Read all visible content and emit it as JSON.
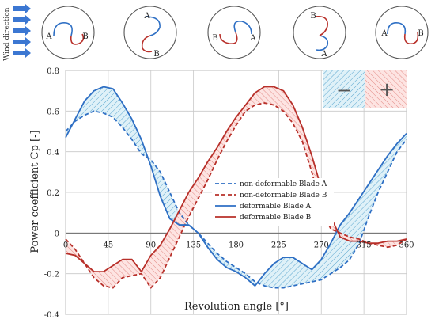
{
  "wind_direction_label": "Wind direction",
  "blade_diagrams": [
    {
      "labels": [
        "A",
        "B"
      ]
    },
    {
      "labels": [
        "A",
        "B"
      ]
    },
    {
      "labels": [
        "B",
        "A"
      ]
    },
    {
      "labels": [
        "B",
        "A"
      ]
    },
    {
      "labels": [
        "A",
        "B"
      ]
    }
  ],
  "sign_box": {
    "minus": "−",
    "plus": "+"
  },
  "colors": {
    "blade_a": "#2e6fc4",
    "blade_b": "#b8302a",
    "fill_a": "#9fd3e6",
    "fill_b": "#f2a7a4",
    "grid": "#c8c8c8"
  },
  "chart_data": {
    "type": "line",
    "title": "",
    "xlabel": "Revolution angle [°]",
    "ylabel": "Power coefficient Cp [-]",
    "xlim": [
      0,
      360
    ],
    "ylim": [
      -0.4,
      0.8
    ],
    "xticks": [
      0,
      45,
      90,
      135,
      180,
      225,
      270,
      315,
      360
    ],
    "xtick_labels": [
      "0",
      "45",
      "90",
      "135",
      "180",
      "225",
      "270",
      "315",
      "360"
    ],
    "yticks": [
      -0.4,
      -0.2,
      0,
      0.2,
      0.4,
      0.6,
      0.8
    ],
    "ytick_labels": [
      "-0.4",
      "-0.2",
      "0",
      "0.2",
      "0.4",
      "0.6",
      "0.8"
    ],
    "grid": true,
    "legend_position": "center-right",
    "series": [
      {
        "name": "non-deformable Blade A",
        "style": "dashed",
        "color": "#2e6fc4",
        "x": [
          0,
          10,
          20,
          30,
          40,
          50,
          60,
          70,
          80,
          90,
          100,
          110,
          120,
          130,
          140,
          150,
          160,
          170,
          180,
          190,
          200,
          210,
          220,
          230,
          240,
          250,
          260,
          270,
          280,
          290,
          300,
          310,
          320,
          330,
          340,
          350,
          360
        ],
        "y": [
          0.5,
          0.55,
          0.58,
          0.6,
          0.59,
          0.57,
          0.52,
          0.46,
          0.39,
          0.36,
          0.3,
          0.2,
          0.1,
          0.04,
          0.0,
          -0.05,
          -0.1,
          -0.14,
          -0.17,
          -0.2,
          -0.24,
          -0.26,
          -0.27,
          -0.27,
          -0.26,
          -0.25,
          -0.24,
          -0.23,
          -0.2,
          -0.17,
          -0.13,
          -0.05,
          0.08,
          0.2,
          0.3,
          0.4,
          0.46
        ]
      },
      {
        "name": "non-deformable Blade B",
        "style": "dashed",
        "color": "#b8302a",
        "x": [
          0,
          10,
          20,
          30,
          40,
          50,
          60,
          70,
          80,
          90,
          100,
          110,
          120,
          130,
          140,
          150,
          160,
          170,
          180,
          190,
          200,
          210,
          220,
          230,
          240,
          250,
          260,
          270,
          280,
          290,
          300,
          310,
          320,
          330,
          340,
          350,
          360
        ],
        "y": [
          -0.03,
          -0.08,
          -0.15,
          -0.22,
          -0.26,
          -0.27,
          -0.22,
          -0.21,
          -0.2,
          -0.27,
          -0.22,
          -0.12,
          -0.02,
          0.08,
          0.17,
          0.26,
          0.36,
          0.45,
          0.53,
          0.6,
          0.63,
          0.64,
          0.63,
          0.6,
          0.54,
          0.45,
          0.3,
          0.12,
          0.02,
          0.0,
          -0.02,
          -0.03,
          -0.05,
          -0.06,
          -0.07,
          -0.06,
          -0.03
        ]
      },
      {
        "name": "deformable Blade A",
        "style": "solid",
        "color": "#2e6fc4",
        "x": [
          0,
          10,
          20,
          30,
          40,
          50,
          60,
          70,
          80,
          90,
          100,
          110,
          120,
          130,
          140,
          150,
          160,
          170,
          180,
          190,
          200,
          210,
          220,
          230,
          240,
          250,
          260,
          270,
          280,
          290,
          300,
          310,
          320,
          330,
          340,
          350,
          360
        ],
        "y": [
          0.47,
          0.56,
          0.65,
          0.7,
          0.72,
          0.71,
          0.64,
          0.56,
          0.46,
          0.33,
          0.18,
          0.07,
          0.04,
          0.04,
          0.0,
          -0.07,
          -0.13,
          -0.17,
          -0.19,
          -0.22,
          -0.26,
          -0.2,
          -0.15,
          -0.12,
          -0.12,
          -0.15,
          -0.18,
          -0.13,
          -0.05,
          0.04,
          0.1,
          0.17,
          0.24,
          0.31,
          0.38,
          0.44,
          0.49
        ]
      },
      {
        "name": "deformable Blade B",
        "style": "solid",
        "color": "#b8302a",
        "x": [
          0,
          10,
          20,
          30,
          40,
          50,
          60,
          70,
          80,
          90,
          100,
          110,
          120,
          130,
          140,
          150,
          160,
          170,
          180,
          190,
          200,
          210,
          220,
          230,
          240,
          250,
          260,
          270,
          280,
          290,
          300,
          310,
          320,
          330,
          340,
          350,
          360
        ],
        "y": [
          -0.1,
          -0.11,
          -0.15,
          -0.19,
          -0.19,
          -0.16,
          -0.13,
          -0.13,
          -0.19,
          -0.11,
          -0.06,
          0.02,
          0.11,
          0.2,
          0.27,
          0.35,
          0.42,
          0.5,
          0.57,
          0.63,
          0.69,
          0.72,
          0.72,
          0.7,
          0.63,
          0.52,
          0.38,
          0.22,
          0.08,
          -0.02,
          -0.04,
          -0.04,
          -0.05,
          -0.05,
          -0.04,
          -0.04,
          -0.03
        ]
      }
    ]
  }
}
